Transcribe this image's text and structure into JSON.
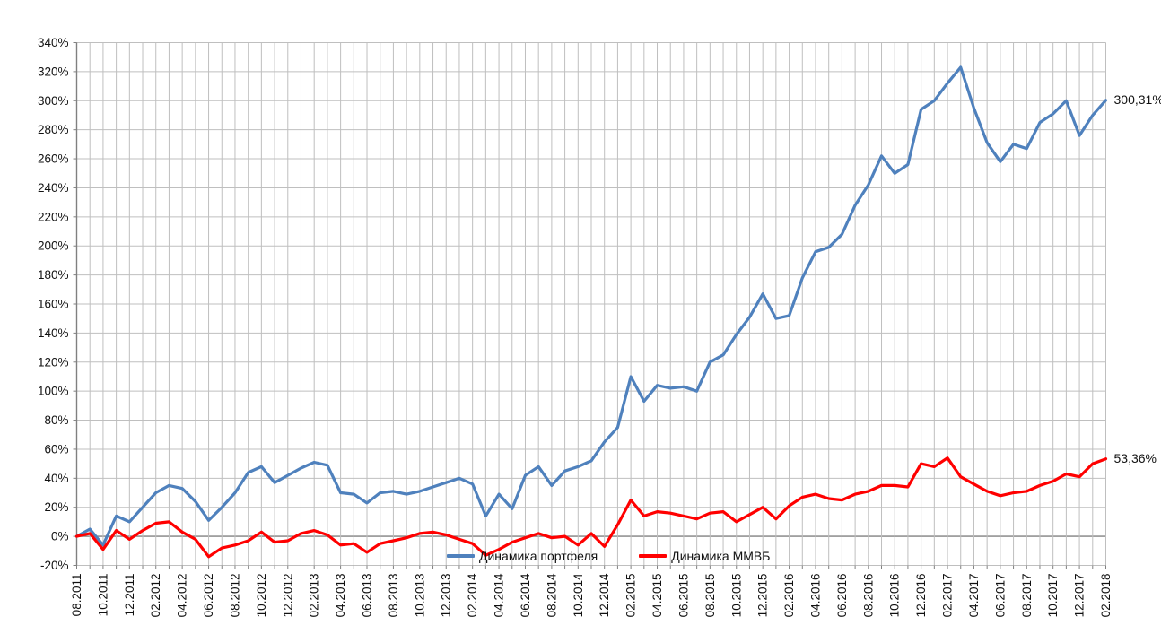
{
  "chart_data": {
    "type": "line",
    "title": "",
    "x_start": "08.2011",
    "x_end": "02.2018",
    "points_per_month": 1,
    "x_gridline_every_months": 1,
    "x_label_every_months": 2,
    "x_tick_labels": [
      "08.2011",
      "10.2011",
      "12.2011",
      "02.2012",
      "04.2012",
      "06.2012",
      "08.2012",
      "10.2012",
      "12.2012",
      "02.2013",
      "04.2013",
      "06.2013",
      "08.2013",
      "10.2013",
      "12.2013",
      "02.2014",
      "04.2014",
      "06.2014",
      "08.2014",
      "10.2014",
      "12.2014",
      "02.2015",
      "04.2015",
      "06.2015",
      "08.2015",
      "10.2015",
      "12.2015",
      "02.2016",
      "04.2016",
      "06.2016",
      "08.2016",
      "10.2016",
      "12.2016",
      "02.2017",
      "04.2017",
      "06.2017",
      "08.2017",
      "10.2017",
      "12.2017",
      "02.2018"
    ],
    "y_axis": {
      "min": -20,
      "max": 340,
      "step": 20,
      "tick_suffix": "%"
    },
    "y_tick_labels": [
      "-20%",
      "0%",
      "20%",
      "40%",
      "60%",
      "80%",
      "100%",
      "120%",
      "140%",
      "160%",
      "180%",
      "200%",
      "220%",
      "240%",
      "260%",
      "280%",
      "300%",
      "320%",
      "340%"
    ],
    "ylim": [
      -20,
      340
    ],
    "grid": "on",
    "legend_position": "inside-bottom-center",
    "colors": {
      "gridline": "#BFBFBF",
      "axis": "#808080",
      "text": "#111111"
    },
    "series": [
      {
        "name": "Динамика портфеля",
        "color": "#4F81BD",
        "end_label": "300,31%",
        "end_value": 300.31,
        "values": [
          0,
          5,
          -6,
          14,
          10,
          20,
          30,
          35,
          33,
          24,
          11,
          20,
          30,
          44,
          48,
          37,
          42,
          47,
          51,
          49,
          30,
          29,
          23,
          30,
          31,
          29,
          31,
          34,
          37,
          40,
          36,
          14,
          29,
          19,
          42,
          48,
          35,
          45,
          48,
          52,
          65,
          75,
          110,
          93,
          104,
          102,
          103,
          100,
          120,
          125,
          139,
          151,
          167,
          150,
          152,
          178,
          196,
          199,
          208,
          228,
          242,
          262,
          250,
          256,
          294,
          300,
          312,
          323,
          295,
          271,
          258,
          270,
          267,
          285,
          291,
          300,
          276,
          290,
          300.31
        ]
      },
      {
        "name": "Динамика ММВБ",
        "color": "#FF0000",
        "end_label": "53,36%",
        "end_value": 53.36,
        "values": [
          0,
          2,
          -9,
          4,
          -2,
          4,
          9,
          10,
          3,
          -2,
          -14,
          -8,
          -6,
          -3,
          3,
          -4,
          -3,
          2,
          4,
          1,
          -6,
          -5,
          -11,
          -5,
          -3,
          -1,
          2,
          3,
          1,
          -2,
          -5,
          -13,
          -9,
          -4,
          -1,
          2,
          -1,
          0,
          -6,
          2,
          -7,
          8,
          25,
          14,
          17,
          16,
          14,
          12,
          16,
          17,
          10,
          15,
          20,
          12,
          21,
          27,
          29,
          26,
          25,
          29,
          31,
          35,
          35,
          34,
          50,
          48,
          54,
          41,
          36,
          31,
          28,
          30,
          31,
          35,
          38,
          43,
          41,
          50,
          53.36
        ]
      }
    ]
  }
}
